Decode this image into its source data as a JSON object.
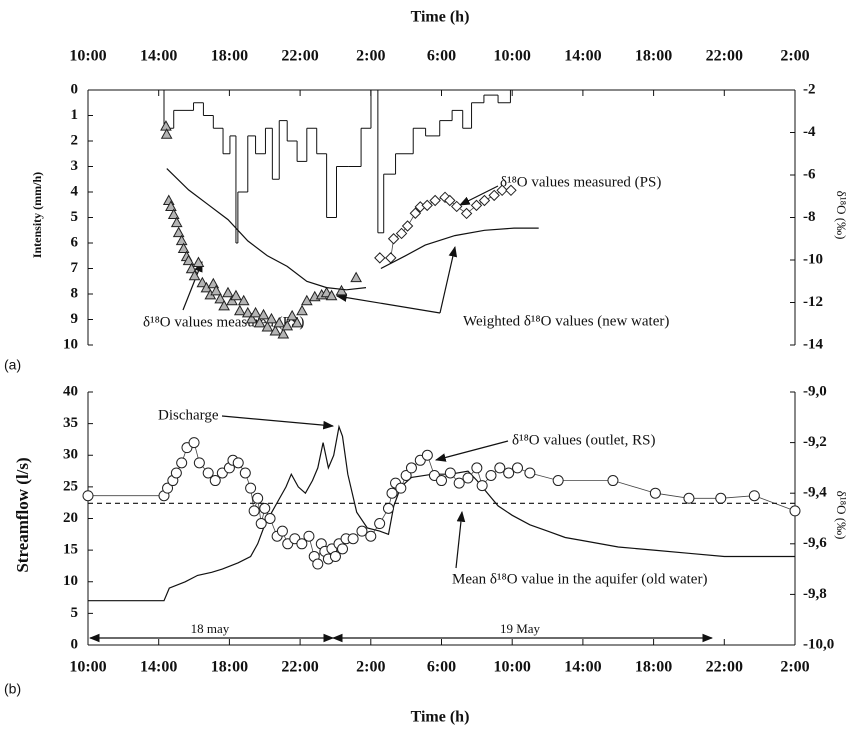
{
  "chart_data": [
    {
      "type": "line",
      "x_label": "Time (h)",
      "y_label": "Intensity (mm/h)",
      "y2_label": "δ¹⁸O (‰)",
      "panel_label": "(a)",
      "xlim": [
        10,
        50
      ],
      "xticks": [
        {
          "value": 10,
          "label": "10:00"
        },
        {
          "value": 14,
          "label": "14:00"
        },
        {
          "value": 18,
          "label": "18:00"
        },
        {
          "value": 22,
          "label": "22:00"
        },
        {
          "value": 26,
          "label": "2:00"
        },
        {
          "value": 30,
          "label": "6:00"
        },
        {
          "value": 34,
          "label": "10:00"
        },
        {
          "value": 38,
          "label": "14:00"
        },
        {
          "value": 42,
          "label": "18:00"
        },
        {
          "value": 46,
          "label": "22:00"
        },
        {
          "value": 50,
          "label": "2:00"
        }
      ],
      "ylim": [
        0,
        10
      ],
      "y_inverted": true,
      "yticks": [
        0,
        1,
        2,
        3,
        4,
        5,
        6,
        7,
        8,
        9,
        10
      ],
      "y2lim": [
        -14,
        -2
      ],
      "y2ticks": [
        -2,
        -4,
        -6,
        -8,
        -10,
        -12,
        -14
      ],
      "series": [
        {
          "type": "step",
          "color": "#111111",
          "x": [
            14.3,
            14.85,
            15.97,
            16.53,
            17.09,
            17.64,
            18.03,
            18.37,
            18.48,
            19.04,
            19.48,
            20.04,
            20.43,
            20.82,
            21.27,
            21.83,
            22.38,
            22.94,
            23.5,
            24.06,
            24.73,
            25.45,
            26.01,
            26.2,
            26.4,
            26.73,
            27.4,
            28.4,
            29.1,
            29.9,
            30.6,
            31.2,
            31.7,
            32.4,
            33.2,
            33.9
          ],
          "values": [
            1.5,
            0.8,
            0.5,
            1,
            1.5,
            2.5,
            1.8,
            6,
            4,
            1.8,
            2.5,
            1.5,
            3.5,
            1.2,
            2,
            2.8,
            1.5,
            2.5,
            5,
            3,
            3,
            1.5,
            0,
            null,
            5.6,
            3.3,
            2.5,
            1.5,
            1.8,
            1.2,
            0.8,
            1.5,
            0.5,
            0.2,
            0.5,
            0
          ]
        },
        {
          "name": "δ¹⁸O values measured (PS)",
          "type": "scatter",
          "marker": "triangle",
          "color": "#b4b4b4",
          "axis": "y2",
          "x": [
            14.41,
            14.45,
            14.57,
            14.69,
            14.85,
            15.02,
            15.13,
            15.3,
            15.41,
            15.58,
            15.69,
            15.86,
            16.03,
            16.25,
            16.47,
            16.7,
            16.92,
            17.09,
            17.25,
            17.48,
            17.7,
            17.92,
            18.15,
            18.37,
            18.59,
            18.81,
            19.04,
            19.26,
            19.48,
            19.71,
            19.93,
            20.15,
            20.38,
            20.6,
            20.82,
            21.05,
            21.27,
            21.55,
            21.83,
            22.11,
            22.38,
            22.83,
            23.22,
            23.5,
            23.78,
            24.34,
            25.17
          ],
          "values": [
            -3.7,
            -4.08,
            -7.2,
            -7.48,
            -7.86,
            -8.24,
            -8.71,
            -9.09,
            -9.46,
            -9.84,
            -10.03,
            -10.41,
            -10.74,
            -10.12,
            -11.07,
            -11.31,
            -11.64,
            -11.12,
            -11.45,
            -11.83,
            -12.16,
            -11.54,
            -11.92,
            -11.68,
            -12.39,
            -11.92,
            -12.49,
            -12.77,
            -12.49,
            -12.96,
            -12.58,
            -13.15,
            -12.77,
            -13.34,
            -12.96,
            -13.48,
            -13.1,
            -12.63,
            -12.96,
            -12.39,
            -11.92,
            -11.73,
            -11.64,
            -11.54,
            -11.68,
            -11.45,
            -10.83
          ]
        },
        {
          "name": "δ¹⁸O values measured (PS)",
          "type": "scatter",
          "marker": "diamond",
          "color": "#ffffff",
          "axis": "y2",
          "connect": true,
          "x": [
            26.51,
            27.13,
            27.29,
            27.74,
            28.08,
            28.52,
            28.8,
            29.19,
            29.64,
            30.2,
            30.47,
            30.86,
            31.42,
            31.98,
            32.43,
            32.98,
            33.43,
            33.93
          ],
          "values": [
            -9.9,
            -9.9,
            -9.0,
            -8.75,
            -8.4,
            -7.8,
            -7.5,
            -7.43,
            -7.2,
            -7.05,
            -7.2,
            -7.48,
            -7.81,
            -7.43,
            -7.2,
            -6.96,
            -6.72,
            -6.72
          ]
        },
        {
          "name": "Weighted δ¹⁸O values (new water)",
          "type": "line",
          "color": "#111111",
          "axis": "y2",
          "x": [
            14.46,
            15.69,
            16.81,
            17.92,
            19.04,
            20.15,
            21.27,
            22.38,
            23.5,
            24.62,
            25.73,
            26.2,
            26.57,
            27.96,
            29.08,
            30.75,
            32.43,
            34.1,
            35.5
          ],
          "values": [
            -5.7,
            -6.7,
            -7.4,
            -8.1,
            -9.1,
            -9.8,
            -10.3,
            -11.0,
            -11.3,
            -11.4,
            -11.3,
            null,
            -10.4,
            -9.8,
            -9.3,
            -8.85,
            -8.6,
            -8.5,
            -8.5
          ]
        }
      ]
    },
    {
      "type": "line",
      "x_label": "Time (h)",
      "y_label": "Streamflow (l/s)",
      "y2_label": "δ¹⁸O (‰)",
      "panel_label": "(b)",
      "xlim": [
        10,
        50
      ],
      "xticks": [
        {
          "value": 10,
          "label": "10:00"
        },
        {
          "value": 14,
          "label": "14:00"
        },
        {
          "value": 18,
          "label": "18:00"
        },
        {
          "value": 22,
          "label": "22:00"
        },
        {
          "value": 26,
          "label": "2:00"
        },
        {
          "value": 30,
          "label": "6:00"
        },
        {
          "value": 34,
          "label": "10:00"
        },
        {
          "value": 38,
          "label": "14:00"
        },
        {
          "value": 42,
          "label": "18:00"
        },
        {
          "value": 46,
          "label": "22:00"
        },
        {
          "value": 50,
          "label": "2:00"
        }
      ],
      "ylim": [
        0,
        40
      ],
      "yticks": [
        0,
        5,
        10,
        15,
        20,
        25,
        30,
        35,
        40
      ],
      "y2lim": [
        -10,
        -9
      ],
      "y2ticks": [
        {
          "value": -9,
          "label": "-9,0"
        },
        {
          "value": -9.2,
          "label": "-9,2"
        },
        {
          "value": -9.4,
          "label": "-9,4"
        },
        {
          "value": -9.6,
          "label": "-9,6"
        },
        {
          "value": -9.8,
          "label": "-9,8"
        },
        {
          "value": -10,
          "label": "-10,0"
        }
      ],
      "annotations": [
        "18 may",
        "19 May"
      ],
      "series": [
        {
          "name": "Discharge",
          "type": "line",
          "color": "#111111",
          "x": [
            10,
            14.3,
            14.6,
            15.5,
            16.2,
            17,
            17.6,
            18.5,
            19.2,
            19.6,
            20,
            20.4,
            20.8,
            21.2,
            21.5,
            21.9,
            22.3,
            22.7,
            23,
            23.3,
            23.6,
            23.9,
            24.2,
            24.4,
            24.7,
            25.2,
            25.8,
            26.5,
            27,
            27.3,
            27.7,
            28.3,
            29.5,
            30.5,
            31.5,
            32,
            32.6,
            33.2,
            34,
            35,
            36,
            37,
            38,
            40,
            42,
            44,
            46,
            50
          ],
          "values": [
            7,
            7,
            9,
            10,
            11,
            11.5,
            12,
            13,
            14,
            16,
            19,
            21,
            23,
            25,
            27,
            25,
            24,
            26,
            28,
            32,
            28,
            30,
            34.5,
            33,
            27,
            21,
            18.5,
            18,
            17.5,
            22,
            25,
            26.5,
            27,
            27,
            27.5,
            26,
            24,
            22,
            20.5,
            19,
            18,
            17,
            16.5,
            15.5,
            15,
            14.5,
            14,
            14
          ]
        },
        {
          "name": "δ¹⁸O values  (outlet, RS)",
          "type": "scatter",
          "marker": "circle",
          "color": "#ffffff",
          "axis": "y2",
          "connect": true,
          "x": [
            10,
            14.3,
            14.5,
            14.8,
            15,
            15.3,
            15.6,
            16,
            16.3,
            16.8,
            17.2,
            17.6,
            18,
            18.2,
            18.5,
            18.9,
            19.2,
            19.4,
            19.6,
            19.8,
            20,
            20.3,
            20.7,
            21,
            21.3,
            21.7,
            22.1,
            22.5,
            22.8,
            23,
            23.2,
            23.4,
            23.6,
            23.8,
            24,
            24.2,
            24.4,
            24.6,
            25,
            25.5,
            26,
            26.5,
            27,
            27.2,
            27.4,
            27.7,
            28,
            28.3,
            28.8,
            29.2,
            29.6,
            30,
            30.5,
            31,
            31.5,
            32,
            32.3,
            32.8,
            33.3,
            33.8,
            34.3,
            35,
            36.6,
            39.7,
            42.1,
            44,
            45.8,
            47.7,
            50
          ],
          "values": [
            -9.41,
            -9.41,
            -9.38,
            -9.35,
            -9.32,
            -9.28,
            -9.22,
            -9.2,
            -9.28,
            -9.32,
            -9.35,
            -9.32,
            -9.3,
            -9.27,
            -9.28,
            -9.32,
            -9.38,
            -9.47,
            -9.42,
            -9.52,
            -9.46,
            -9.5,
            -9.57,
            -9.55,
            -9.6,
            -9.58,
            -9.6,
            -9.57,
            -9.65,
            -9.68,
            -9.6,
            -9.63,
            -9.66,
            -9.62,
            -9.65,
            -9.6,
            -9.62,
            -9.58,
            -9.58,
            -9.55,
            -9.57,
            -9.52,
            -9.46,
            -9.4,
            -9.36,
            -9.38,
            -9.33,
            -9.3,
            -9.27,
            -9.25,
            -9.33,
            -9.35,
            -9.32,
            -9.36,
            -9.34,
            -9.3,
            -9.37,
            -9.33,
            -9.3,
            -9.32,
            -9.3,
            -9.32,
            -9.35,
            -9.35,
            -9.4,
            -9.42,
            -9.42,
            -9.41,
            -9.47
          ]
        },
        {
          "name": "Mean δ¹⁸O value in the aquifer (old water)",
          "type": "line",
          "color": "#111111",
          "axis": "y2",
          "dash": true,
          "x": [
            10,
            50
          ],
          "values": [
            -9.44,
            -9.44
          ]
        }
      ]
    }
  ]
}
